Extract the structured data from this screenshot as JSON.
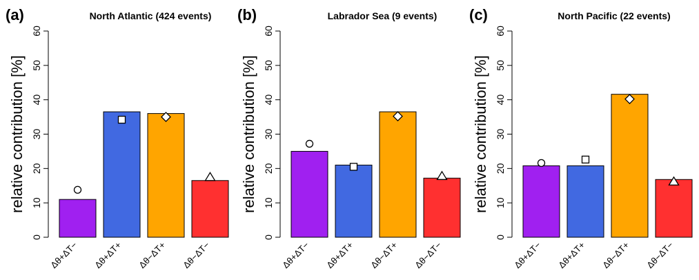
{
  "chart_data": [
    {
      "type": "bar",
      "panel_label": "(a)",
      "title": "North Atlantic (424 events)",
      "ylabel": "relative contribution [%]",
      "xlabel": "",
      "ylim": [
        0,
        60
      ],
      "yticks": [
        "0",
        "10",
        "20",
        "30",
        "40",
        "50",
        "60"
      ],
      "categories": [
        "Δθ+ΔT−",
        "Δθ+ΔT+",
        "Δθ−ΔT+",
        "Δθ−ΔT−"
      ],
      "colors": [
        "#a020f0",
        "#4169e1",
        "#ffa500",
        "#ff3030"
      ],
      "values": [
        11,
        36.5,
        36,
        16.5
      ],
      "markers": [
        {
          "shape": "circle",
          "value": 13.8
        },
        {
          "shape": "square",
          "value": 34.2
        },
        {
          "shape": "diamond",
          "value": 35
        },
        {
          "shape": "triangle",
          "value": 17.5
        }
      ],
      "grid": false
    },
    {
      "type": "bar",
      "panel_label": "(b)",
      "title": "Labrador Sea (9 events)",
      "ylabel": "relative contribution [%]",
      "xlabel": "",
      "ylim": [
        0,
        60
      ],
      "yticks": [
        "0",
        "10",
        "20",
        "30",
        "40",
        "50",
        "60"
      ],
      "categories": [
        "Δθ+ΔT−",
        "Δθ+ΔT+",
        "Δθ−ΔT+",
        "Δθ−ΔT−"
      ],
      "colors": [
        "#a020f0",
        "#4169e1",
        "#ffa500",
        "#ff3030"
      ],
      "values": [
        25,
        21,
        36.5,
        17.2
      ],
      "markers": [
        {
          "shape": "circle",
          "value": 27.2
        },
        {
          "shape": "square",
          "value": 20.5
        },
        {
          "shape": "diamond",
          "value": 35.2
        },
        {
          "shape": "triangle",
          "value": 17.8
        }
      ],
      "grid": false
    },
    {
      "type": "bar",
      "panel_label": "(c)",
      "title": "North Pacific (22 events)",
      "ylabel": "relative contribution [%]",
      "xlabel": "",
      "ylim": [
        0,
        60
      ],
      "yticks": [
        "0",
        "10",
        "20",
        "30",
        "40",
        "50",
        "60"
      ],
      "categories": [
        "Δθ+ΔT−",
        "Δθ+ΔT+",
        "Δθ−ΔT+",
        "Δθ−ΔT−"
      ],
      "colors": [
        "#a020f0",
        "#4169e1",
        "#ffa500",
        "#ff3030"
      ],
      "values": [
        20.8,
        20.8,
        41.6,
        16.8
      ],
      "markers": [
        {
          "shape": "circle",
          "value": 21.6
        },
        {
          "shape": "square",
          "value": 22.6
        },
        {
          "shape": "diamond",
          "value": 40.2
        },
        {
          "shape": "triangle",
          "value": 16.2
        }
      ],
      "grid": false
    }
  ]
}
